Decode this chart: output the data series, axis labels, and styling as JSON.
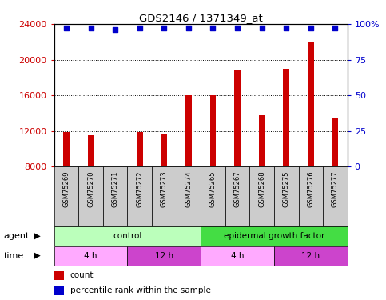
{
  "title": "GDS2146 / 1371349_at",
  "samples": [
    "GSM75269",
    "GSM75270",
    "GSM75271",
    "GSM75272",
    "GSM75273",
    "GSM75274",
    "GSM75265",
    "GSM75267",
    "GSM75268",
    "GSM75275",
    "GSM75276",
    "GSM75277"
  ],
  "bar_values": [
    11900,
    11500,
    8100,
    11900,
    11600,
    16000,
    16000,
    18900,
    13800,
    19000,
    22000,
    13500
  ],
  "percentile_values": [
    97,
    97,
    96,
    97,
    97,
    97,
    97,
    97,
    97,
    97,
    97,
    97
  ],
  "bar_color": "#cc0000",
  "dot_color": "#0000cc",
  "ylim_left": [
    8000,
    24000
  ],
  "ylim_right": [
    0,
    100
  ],
  "yticks_left": [
    8000,
    12000,
    16000,
    20000,
    24000
  ],
  "yticks_right": [
    0,
    25,
    50,
    75,
    100
  ],
  "agent_groups": [
    {
      "label": "control",
      "start": 0,
      "end": 6,
      "color": "#bbffbb"
    },
    {
      "label": "epidermal growth factor",
      "start": 6,
      "end": 12,
      "color": "#44dd44"
    }
  ],
  "time_groups": [
    {
      "label": "4 h",
      "start": 0,
      "end": 3,
      "color": "#ffaaff"
    },
    {
      "label": "12 h",
      "start": 3,
      "end": 6,
      "color": "#cc44cc"
    },
    {
      "label": "4 h",
      "start": 6,
      "end": 9,
      "color": "#ffaaff"
    },
    {
      "label": "12 h",
      "start": 9,
      "end": 12,
      "color": "#cc44cc"
    }
  ],
  "legend_items": [
    {
      "label": "count",
      "color": "#cc0000"
    },
    {
      "label": "percentile rank within the sample",
      "color": "#0000cc"
    }
  ],
  "tick_label_color_left": "#cc0000",
  "tick_label_color_right": "#0000cc",
  "background_color": "#ffffff",
  "bar_bottom": 8000,
  "bar_width": 0.25,
  "label_box_color": "#cccccc",
  "left_label_color": "#000000"
}
